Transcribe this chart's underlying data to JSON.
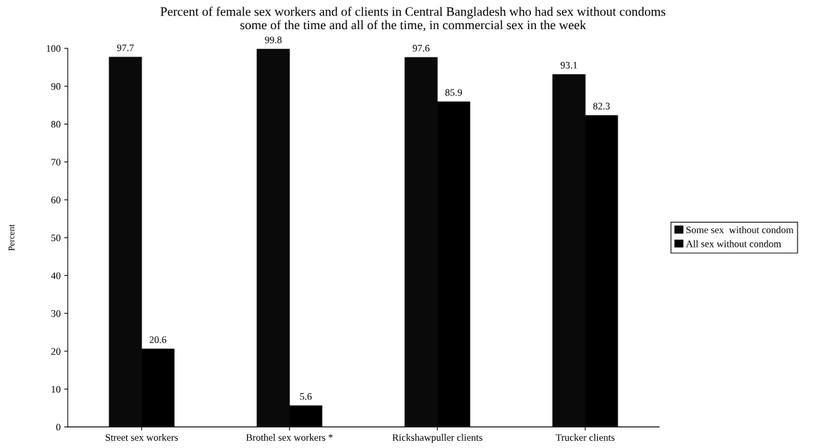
{
  "chart_data": {
    "type": "bar",
    "title": "Percent of female sex workers and of clients in Central Bangladesh who had sex without condoms\nsome of the time and all of the time, in commercial sex in the week",
    "ylabel": "Percent",
    "categories": [
      "Street sex workers",
      "Brothel sex workers *",
      "Rickshawpuller clients",
      "Trucker clients"
    ],
    "series": [
      {
        "name": "Some sex  without condom",
        "color": "#0a0a0a",
        "values": [
          97.7,
          99.8,
          97.6,
          93.1
        ]
      },
      {
        "name": "All sex without condom",
        "color": "#000000",
        "values": [
          20.6,
          5.6,
          85.9,
          82.3
        ]
      }
    ],
    "ylim": [
      0,
      100
    ],
    "yticks": [
      0,
      10,
      20,
      30,
      40,
      50,
      60,
      70,
      80,
      90,
      100
    ],
    "data_labels": true,
    "legend": "right",
    "grid": false
  }
}
